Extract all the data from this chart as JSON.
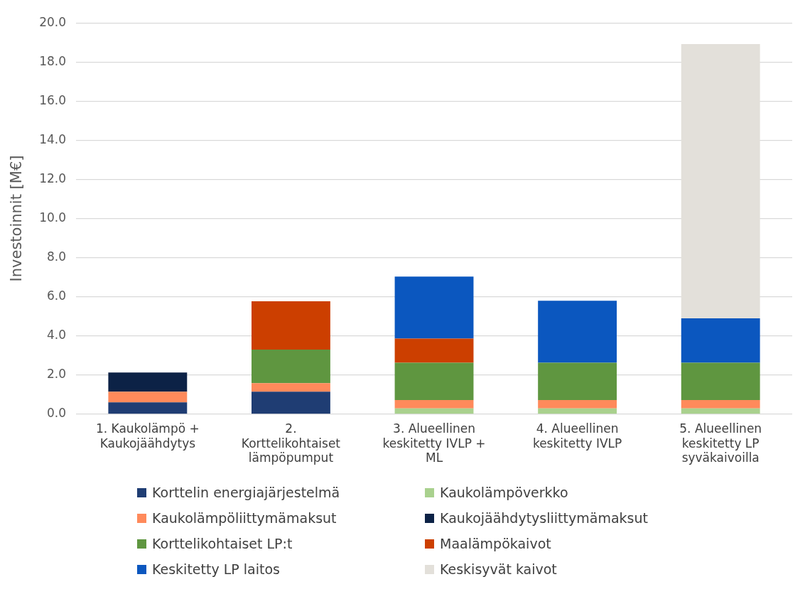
{
  "chart_data": {
    "type": "bar",
    "stacked": true,
    "ylabel": "Investoinnit [M€]",
    "categories": [
      "1. Kaukolämpö + Kaukojäähdytys",
      "2. Korttelikohtaiset lämpöpumput",
      "3. Alueellinen keskitetty IVLP + ML",
      "4. Alueellinen keskitetty IVLP",
      "5. Alueellinen keskitetty LP syväkaivoilla"
    ],
    "series": [
      {
        "name": "Korttelin energiajärjestelmä",
        "color": "#1f3d73",
        "values": [
          0.6,
          1.15,
          null,
          null,
          null
        ]
      },
      {
        "name": "Kaukolämpöverkko",
        "color": "#a9d18e",
        "values": [
          null,
          null,
          0.29,
          0.29,
          0.29
        ]
      },
      {
        "name": "Kaukolämpöliittymämaksut",
        "color": "#ff8a5b",
        "values": [
          0.55,
          0.43,
          0.43,
          0.43,
          0.43
        ]
      },
      {
        "name": "Kaukojäähdytysliittymämaksut",
        "color": "#0c2246",
        "values": [
          0.98,
          null,
          null,
          null,
          null
        ]
      },
      {
        "name": "Korttelikohtaiset LP:t",
        "color": "#5f9640",
        "values": [
          null,
          1.72,
          1.91,
          1.91,
          1.91
        ]
      },
      {
        "name": "Maalämpökaivot",
        "color": "#cc3f00",
        "values": [
          null,
          2.47,
          1.23,
          null,
          null
        ]
      },
      {
        "name": "Keskitetty LP laitos",
        "color": "#0b57bf",
        "values": [
          null,
          null,
          3.17,
          3.17,
          2.27
        ]
      },
      {
        "name": "Keskisyvät kaivot",
        "color": "#e3e0da",
        "values": [
          null,
          null,
          null,
          null,
          14.02
        ]
      }
    ],
    "ylim": [
      0,
      20
    ],
    "yticks": [
      {
        "value": 0,
        "label": "0.0"
      },
      {
        "value": 2,
        "label": "2.0"
      },
      {
        "value": 4,
        "label": "4.0"
      },
      {
        "value": 6,
        "label": "6.0"
      },
      {
        "value": 8,
        "label": "8.0"
      },
      {
        "value": 10,
        "label": "10.0"
      },
      {
        "value": 12,
        "label": "12.0"
      },
      {
        "value": 14,
        "label": "14.0"
      },
      {
        "value": 16,
        "label": "16.0"
      },
      {
        "value": 18,
        "label": "18.0"
      },
      {
        "value": 20,
        "label": "20.0"
      }
    ],
    "grid": "y",
    "legend": "bottom"
  }
}
